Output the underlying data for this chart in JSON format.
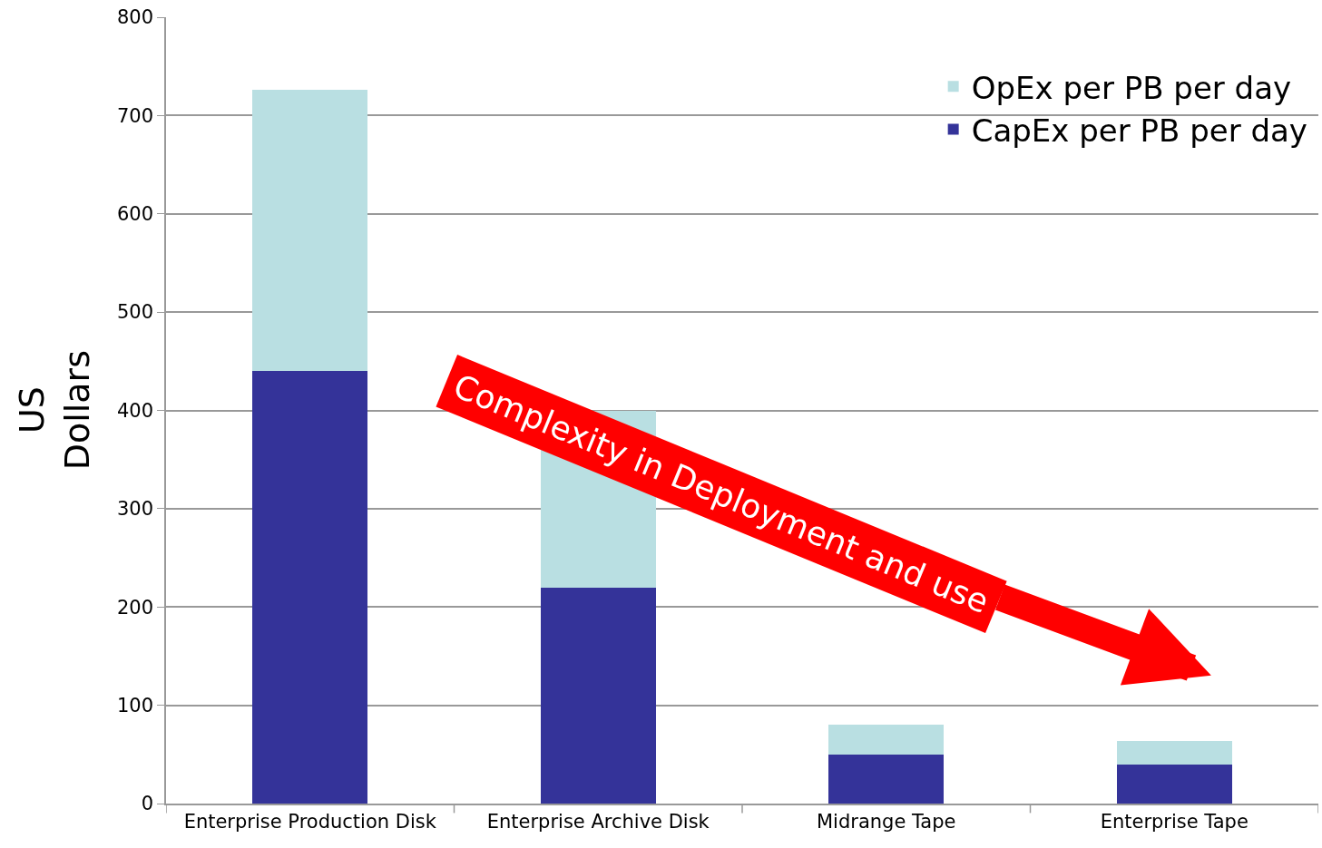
{
  "chart_data": {
    "type": "bar",
    "stacked": true,
    "categories": [
      "Enterprise Production Disk",
      "Enterprise Archive Disk",
      "Midrange Tape",
      "Enterprise Tape"
    ],
    "series": [
      {
        "name": "CapEx per PB per day",
        "color": "#343399",
        "values": [
          440,
          220,
          50,
          40
        ]
      },
      {
        "name": "OpEx per PB per day",
        "color": "#b9dfe2",
        "values": [
          286,
          180,
          30,
          24
        ]
      }
    ],
    "ylabel": "US\nDollars",
    "ylim": [
      0,
      800
    ],
    "yticks": [
      0,
      100,
      200,
      300,
      400,
      500,
      600,
      700,
      800
    ],
    "grid": "y",
    "legend": "top right",
    "annotations": [
      "Complexity in Deployment and use"
    ]
  }
}
